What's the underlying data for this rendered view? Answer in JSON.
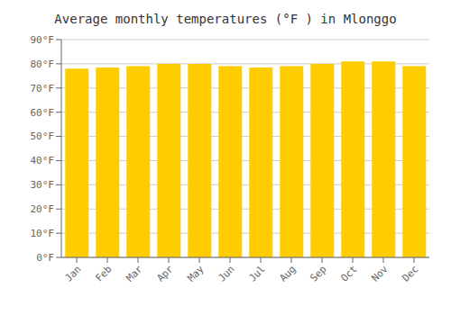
{
  "chart_data": {
    "type": "bar",
    "title": "Average monthly temperatures (°F ) in Mlonggo",
    "categories": [
      "Jan",
      "Feb",
      "Mar",
      "Apr",
      "May",
      "Jun",
      "Jul",
      "Aug",
      "Sep",
      "Oct",
      "Nov",
      "Dec"
    ],
    "values": [
      78,
      78.5,
      79,
      80,
      80,
      79,
      78.5,
      79,
      80,
      81,
      81,
      79
    ],
    "color": "#FFCC00",
    "ylim": [
      0,
      90
    ],
    "yticks": [
      {
        "value": 0,
        "label": "0°F"
      },
      {
        "value": 10,
        "label": "10°F"
      },
      {
        "value": 20,
        "label": "20°F"
      },
      {
        "value": 30,
        "label": "30°F"
      },
      {
        "value": 40,
        "label": "40°F"
      },
      {
        "value": 50,
        "label": "50°F"
      },
      {
        "value": 60,
        "label": "60°F"
      },
      {
        "value": 70,
        "label": "70°F"
      },
      {
        "value": 80,
        "label": "80°F"
      },
      {
        "value": 90,
        "label": "90°F"
      }
    ],
    "grid": true
  }
}
